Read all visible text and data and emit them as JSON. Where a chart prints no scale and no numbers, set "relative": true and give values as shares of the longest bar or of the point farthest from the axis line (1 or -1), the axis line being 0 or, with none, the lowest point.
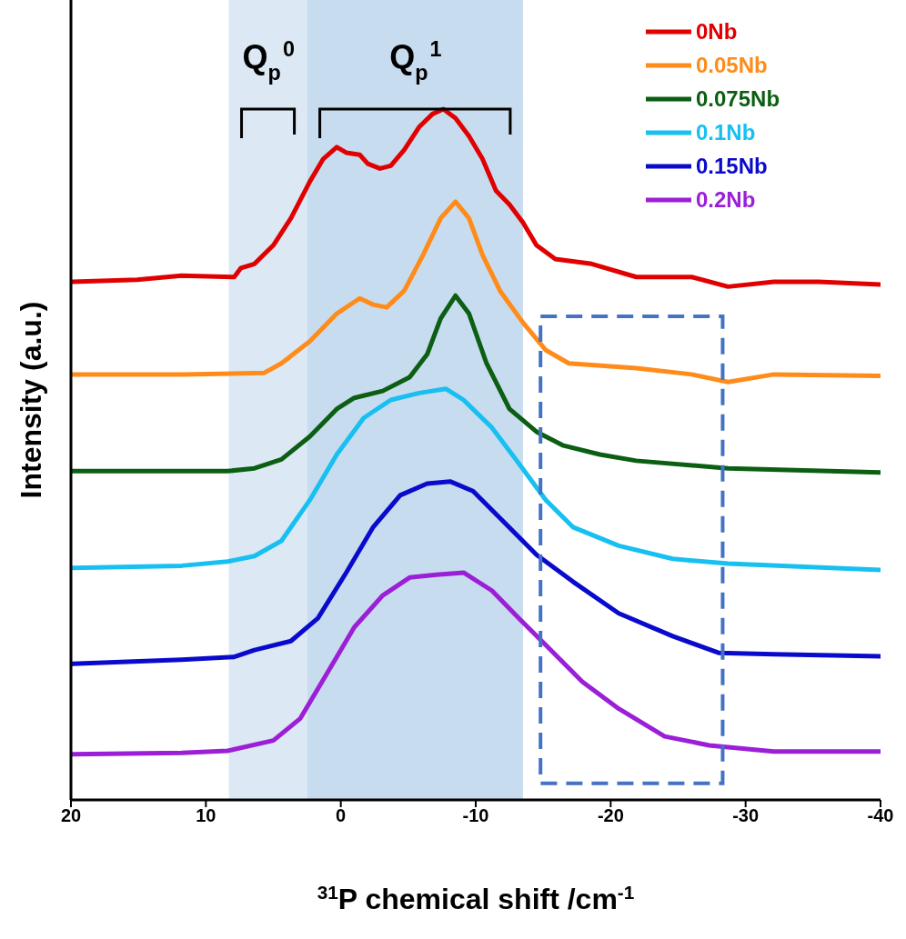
{
  "chart_data": {
    "type": "line",
    "relative": true,
    "xlabel": "$^{31}$P chemical shift /cm$^{-1}$",
    "ylabel": "Intensity (a.u.)",
    "xlim": [
      20,
      -40
    ],
    "xticks": [
      20,
      10,
      0,
      -10,
      -20,
      -30,
      -40
    ],
    "legend": "top right",
    "line_style": "solid",
    "bands": [
      {
        "axis": "x",
        "from": 8.3,
        "to": 2.5,
        "color": "#dce8f4",
        "label": "Q$_{p}$$^{0}$"
      },
      {
        "axis": "x",
        "from": 2.5,
        "to": -13.5,
        "color": "#c8dcef",
        "label": "Q$_{p}$$^{1}$"
      }
    ],
    "series": [
      {
        "name": "0Nb",
        "color": "#e00000",
        "x": [
          19.9,
          15.1,
          11.8,
          7.9,
          7.4,
          6.4,
          5.0,
          3.7,
          2.3,
          1.3,
          0.3,
          -0.4,
          -1.4,
          -2.0,
          -2.9,
          -3.7,
          -4.7,
          -5.8,
          -6.8,
          -7.6,
          -8.5,
          -9.5,
          -10.5,
          -11.5,
          -12.5,
          -13.5,
          -14.5,
          -15.9,
          -18.6,
          -21.9,
          -26.0,
          -28.7,
          -32.1,
          -35.4,
          -40
        ],
        "values": [
          0.75,
          0.753,
          0.759,
          0.757,
          0.77,
          0.776,
          0.803,
          0.842,
          0.895,
          0.928,
          0.945,
          0.937,
          0.934,
          0.921,
          0.914,
          0.918,
          0.941,
          0.974,
          0.993,
          1,
          0.987,
          0.961,
          0.928,
          0.882,
          0.862,
          0.836,
          0.803,
          0.783,
          0.776,
          0.757,
          0.757,
          0.743,
          0.75,
          0.75,
          0.746
        ]
      },
      {
        "name": "0.05Nb",
        "color": "#ff8c1a",
        "x": [
          19.9,
          11.8,
          5.7,
          4.4,
          2.3,
          0.3,
          -1.4,
          -2.4,
          -3.4,
          -4.7,
          -6.1,
          -7.4,
          -8.5,
          -9.5,
          -10.5,
          -11.8,
          -13.5,
          -15.2,
          -16.9,
          -21.9,
          -26.0,
          -28.7,
          -32.1,
          -40
        ],
        "values": [
          0.616,
          0.616,
          0.618,
          0.632,
          0.664,
          0.704,
          0.726,
          0.717,
          0.713,
          0.737,
          0.789,
          0.842,
          0.866,
          0.842,
          0.789,
          0.737,
          0.691,
          0.651,
          0.632,
          0.625,
          0.616,
          0.605,
          0.616,
          0.614
        ]
      },
      {
        "name": "0.075Nb",
        "color": "#0b5e12",
        "x": [
          19.9,
          8.4,
          6.4,
          4.4,
          2.3,
          0.3,
          -1.0,
          -3.1,
          -5.1,
          -6.4,
          -7.4,
          -8.5,
          -9.5,
          -10.8,
          -12.5,
          -14.5,
          -16.5,
          -19.2,
          -21.9,
          -28.7,
          -40
        ],
        "values": [
          0.476,
          0.476,
          0.48,
          0.493,
          0.526,
          0.566,
          0.582,
          0.592,
          0.612,
          0.645,
          0.697,
          0.73,
          0.704,
          0.632,
          0.566,
          0.533,
          0.513,
          0.5,
          0.491,
          0.48,
          0.474
        ]
      },
      {
        "name": "0.1Nb",
        "color": "#17c0f0",
        "x": [
          19.9,
          11.8,
          8.4,
          6.4,
          4.4,
          2.3,
          0.3,
          -1.7,
          -3.7,
          -5.8,
          -7.8,
          -9.1,
          -11.2,
          -13.2,
          -15.2,
          -17.2,
          -20.6,
          -24.6,
          -28.7,
          -40
        ],
        "values": [
          0.336,
          0.339,
          0.345,
          0.353,
          0.375,
          0.434,
          0.5,
          0.553,
          0.579,
          0.589,
          0.595,
          0.579,
          0.539,
          0.487,
          0.434,
          0.395,
          0.368,
          0.349,
          0.342,
          0.333
        ]
      },
      {
        "name": "0.15Nb",
        "color": "#0a0acc",
        "x": [
          19.9,
          11.8,
          7.9,
          6.4,
          3.7,
          1.7,
          -0.4,
          -2.4,
          -4.4,
          -6.4,
          -8.1,
          -9.8,
          -11.8,
          -14.5,
          -17.2,
          -20.6,
          -24.6,
          -28.0,
          -32.1,
          -40
        ],
        "values": [
          0.197,
          0.203,
          0.207,
          0.217,
          0.23,
          0.263,
          0.329,
          0.395,
          0.441,
          0.458,
          0.461,
          0.447,
          0.408,
          0.355,
          0.316,
          0.27,
          0.237,
          0.213,
          0.211,
          0.208
        ]
      },
      {
        "name": "0.2Nb",
        "color": "#9b1fd6",
        "x": [
          19.9,
          11.8,
          8.4,
          5.0,
          3.0,
          1.0,
          -1.0,
          -3.1,
          -5.1,
          -7.1,
          -9.1,
          -11.2,
          -13.2,
          -15.2,
          -17.9,
          -20.6,
          -24.0,
          -27.3,
          -32.1,
          -40
        ],
        "values": [
          0.066,
          0.068,
          0.071,
          0.086,
          0.118,
          0.184,
          0.25,
          0.296,
          0.322,
          0.326,
          0.329,
          0.303,
          0.263,
          0.224,
          0.171,
          0.132,
          0.092,
          0.079,
          0.07,
          0.07
        ]
      }
    ]
  }
}
